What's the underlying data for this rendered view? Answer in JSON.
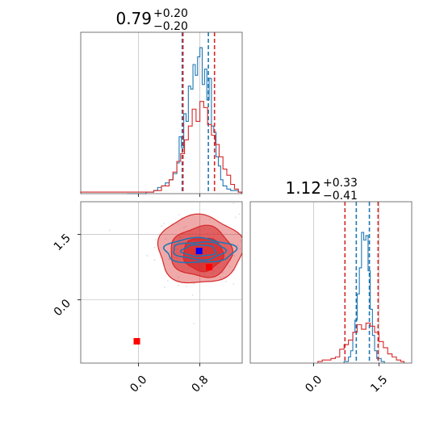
{
  "chart_data": [
    {
      "type": "histogram",
      "panel": "marginal-param-1",
      "title": "0.79",
      "title_sup": "+0.20",
      "title_sub": "−0.20",
      "xlim": [
        -0.75,
        1.35
      ],
      "ylim": [
        0,
        1.05
      ],
      "grid": true,
      "series": [
        {
          "color": "#1f77b4",
          "bins": [
            {
              "x": -0.15,
              "y": 0.0
            },
            {
              "x": 0.1,
              "y": 0.01
            },
            {
              "x": 0.2,
              "y": 0.02
            },
            {
              "x": 0.25,
              "y": 0.04
            },
            {
              "x": 0.3,
              "y": 0.05
            },
            {
              "x": 0.35,
              "y": 0.07
            },
            {
              "x": 0.4,
              "y": 0.09
            },
            {
              "x": 0.45,
              "y": 0.13
            },
            {
              "x": 0.5,
              "y": 0.2
            },
            {
              "x": 0.53,
              "y": 0.37
            },
            {
              "x": 0.56,
              "y": 0.3
            },
            {
              "x": 0.59,
              "y": 0.52
            },
            {
              "x": 0.62,
              "y": 0.47
            },
            {
              "x": 0.65,
              "y": 0.7
            },
            {
              "x": 0.68,
              "y": 0.68
            },
            {
              "x": 0.71,
              "y": 0.84
            },
            {
              "x": 0.74,
              "y": 0.77
            },
            {
              "x": 0.77,
              "y": 0.89
            },
            {
              "x": 0.8,
              "y": 0.95
            },
            {
              "x": 0.83,
              "y": 0.71
            },
            {
              "x": 0.86,
              "y": 0.81
            },
            {
              "x": 0.89,
              "y": 0.61
            },
            {
              "x": 0.92,
              "y": 0.75
            },
            {
              "x": 0.95,
              "y": 0.44
            },
            {
              "x": 0.98,
              "y": 0.4
            },
            {
              "x": 1.01,
              "y": 0.24
            },
            {
              "x": 1.04,
              "y": 0.18
            },
            {
              "x": 1.07,
              "y": 0.09
            },
            {
              "x": 1.1,
              "y": 0.05
            },
            {
              "x": 1.15,
              "y": 0.03
            },
            {
              "x": 1.2,
              "y": 0.02
            },
            {
              "x": 1.3,
              "y": 0.01
            }
          ],
          "quantile_lines": [
            0.57,
            0.91
          ]
        },
        {
          "color": "#d62728",
          "bins": [
            {
              "x": -0.75,
              "y": 0.01
            },
            {
              "x": -0.4,
              "y": 0.01
            },
            {
              "x": 0.0,
              "y": 0.01
            },
            {
              "x": 0.1,
              "y": 0.01
            },
            {
              "x": 0.2,
              "y": 0.02
            },
            {
              "x": 0.3,
              "y": 0.05
            },
            {
              "x": 0.4,
              "y": 0.09
            },
            {
              "x": 0.45,
              "y": 0.14
            },
            {
              "x": 0.5,
              "y": 0.21
            },
            {
              "x": 0.55,
              "y": 0.26
            },
            {
              "x": 0.6,
              "y": 0.35
            },
            {
              "x": 0.65,
              "y": 0.44
            },
            {
              "x": 0.7,
              "y": 0.55
            },
            {
              "x": 0.75,
              "y": 0.47
            },
            {
              "x": 0.8,
              "y": 0.6
            },
            {
              "x": 0.85,
              "y": 0.56
            },
            {
              "x": 0.9,
              "y": 0.45
            },
            {
              "x": 0.95,
              "y": 0.38
            },
            {
              "x": 1.0,
              "y": 0.32
            },
            {
              "x": 1.05,
              "y": 0.24
            },
            {
              "x": 1.1,
              "y": 0.16
            },
            {
              "x": 1.15,
              "y": 0.12
            },
            {
              "x": 1.2,
              "y": 0.06
            },
            {
              "x": 1.25,
              "y": 0.03
            },
            {
              "x": 1.3,
              "y": 0.01
            }
          ],
          "quantile_lines": [
            0.58,
            0.99
          ]
        }
      ]
    },
    {
      "type": "contour-scatter",
      "panel": "joint",
      "xlim": [
        -0.75,
        1.35
      ],
      "ylim": [
        -1.45,
        2.25
      ],
      "xticks": [
        "0.0",
        "0.8"
      ],
      "xtick_values": [
        0.0,
        0.8
      ],
      "yticks": [
        "0.0",
        "1.5"
      ],
      "ytick_values": [
        0.0,
        1.5
      ],
      "grid": true,
      "red_contours": [
        {
          "level": 0.95,
          "cx": 0.8,
          "cy": 1.15,
          "rx": 0.55,
          "ry": 0.78,
          "opacity": 0.4
        },
        {
          "level": 0.68,
          "cx": 0.82,
          "cy": 1.1,
          "rx": 0.4,
          "ry": 0.58,
          "opacity": 0.55
        },
        {
          "level": 0.39,
          "cx": 0.84,
          "cy": 1.05,
          "rx": 0.26,
          "ry": 0.38,
          "opacity": 0.75
        }
      ],
      "blue_contours": [
        {
          "cx": 0.79,
          "cy": 1.13,
          "rx": 0.46,
          "ry": 0.28
        },
        {
          "cx": 0.79,
          "cy": 1.13,
          "rx": 0.34,
          "ry": 0.2
        },
        {
          "cx": 0.79,
          "cy": 1.13,
          "rx": 0.22,
          "ry": 0.13
        }
      ],
      "markers": [
        {
          "color": "#0000ff",
          "x": 0.79,
          "y": 1.12
        },
        {
          "color": "#ff0000",
          "x": 0.92,
          "y": 0.75
        },
        {
          "color": "#ff0000",
          "x": -0.02,
          "y": -0.95
        }
      ]
    },
    {
      "type": "histogram",
      "panel": "marginal-param-2",
      "title": "1.12",
      "title_sup": "+0.33",
      "title_sub": "−0.41",
      "xlim": [
        -1.45,
        2.25
      ],
      "ylim": [
        0,
        1.05
      ],
      "xticks": [
        "0.0",
        "1.5"
      ],
      "xtick_values": [
        0.0,
        1.5
      ],
      "grid": true,
      "series": [
        {
          "color": "#1f77b4",
          "bins": [
            {
              "x": 0.7,
              "y": 0.01
            },
            {
              "x": 0.8,
              "y": 0.04
            },
            {
              "x": 0.85,
              "y": 0.08
            },
            {
              "x": 0.9,
              "y": 0.2
            },
            {
              "x": 0.95,
              "y": 0.28
            },
            {
              "x": 1.0,
              "y": 0.45
            },
            {
              "x": 1.05,
              "y": 0.62
            },
            {
              "x": 1.1,
              "y": 0.85
            },
            {
              "x": 1.15,
              "y": 0.8
            },
            {
              "x": 1.2,
              "y": 0.83
            },
            {
              "x": 1.25,
              "y": 0.6
            },
            {
              "x": 1.3,
              "y": 0.35
            },
            {
              "x": 1.35,
              "y": 0.18
            },
            {
              "x": 1.4,
              "y": 0.08
            },
            {
              "x": 1.45,
              "y": 0.03
            },
            {
              "x": 1.55,
              "y": 0.01
            }
          ],
          "quantile_lines": [
            0.98,
            1.28
          ]
        },
        {
          "color": "#d62728",
          "bins": [
            {
              "x": 0.1,
              "y": 0.01
            },
            {
              "x": 0.2,
              "y": 0.02
            },
            {
              "x": 0.3,
              "y": 0.02
            },
            {
              "x": 0.4,
              "y": 0.03
            },
            {
              "x": 0.5,
              "y": 0.04
            },
            {
              "x": 0.6,
              "y": 0.09
            },
            {
              "x": 0.7,
              "y": 0.12
            },
            {
              "x": 0.8,
              "y": 0.15
            },
            {
              "x": 0.9,
              "y": 0.2
            },
            {
              "x": 1.0,
              "y": 0.25
            },
            {
              "x": 1.1,
              "y": 0.22
            },
            {
              "x": 1.2,
              "y": 0.26
            },
            {
              "x": 1.3,
              "y": 0.24
            },
            {
              "x": 1.4,
              "y": 0.2
            },
            {
              "x": 1.5,
              "y": 0.14
            },
            {
              "x": 1.6,
              "y": 0.1
            },
            {
              "x": 1.7,
              "y": 0.06
            },
            {
              "x": 1.8,
              "y": 0.04
            },
            {
              "x": 1.9,
              "y": 0.02
            },
            {
              "x": 2.0,
              "y": 0.01
            }
          ],
          "quantile_lines": [
            0.72,
            1.48
          ]
        }
      ]
    }
  ],
  "colors": {
    "blue": "#1f77b4",
    "red": "#d62728",
    "grid": "#b0b0b0",
    "marker_blue": "#0000ff",
    "marker_red": "#ff0000"
  }
}
